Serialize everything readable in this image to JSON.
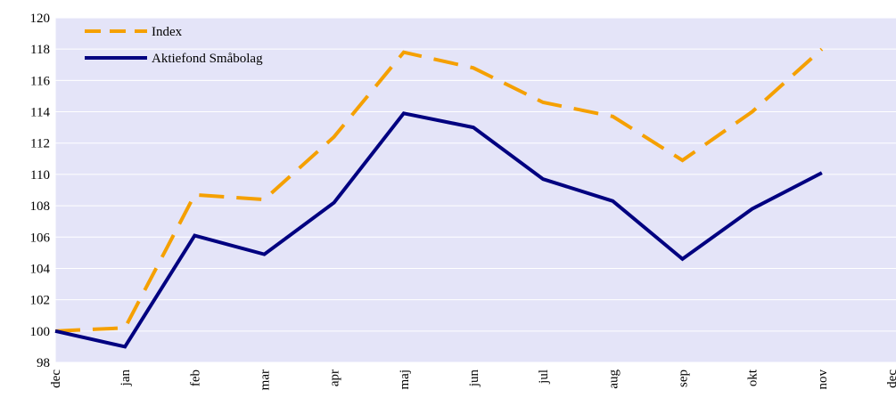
{
  "chart_data": {
    "type": "line",
    "categories": [
      "dec",
      "jan",
      "feb",
      "mar",
      "apr",
      "maj",
      "jun",
      "jul",
      "aug",
      "sep",
      "okt",
      "nov",
      "dec"
    ],
    "series": [
      {
        "name": "Index",
        "color": "#f5a000",
        "dash": true,
        "values": [
          100,
          100.2,
          108.7,
          108.4,
          112.4,
          117.8,
          116.8,
          114.6,
          113.7,
          110.9,
          114,
          118,
          null
        ]
      },
      {
        "name": "Aktiefond Småbolag",
        "color": "#000080",
        "dash": false,
        "values": [
          100,
          99,
          106.1,
          104.9,
          108.2,
          113.9,
          113,
          109.7,
          108.3,
          104.6,
          107.8,
          110.1,
          null
        ]
      }
    ],
    "ylim": [
      98,
      120
    ],
    "yticks": [
      98,
      100,
      102,
      104,
      106,
      108,
      110,
      112,
      114,
      116,
      118,
      120
    ],
    "grid": true,
    "background": "#e4e4f8"
  }
}
